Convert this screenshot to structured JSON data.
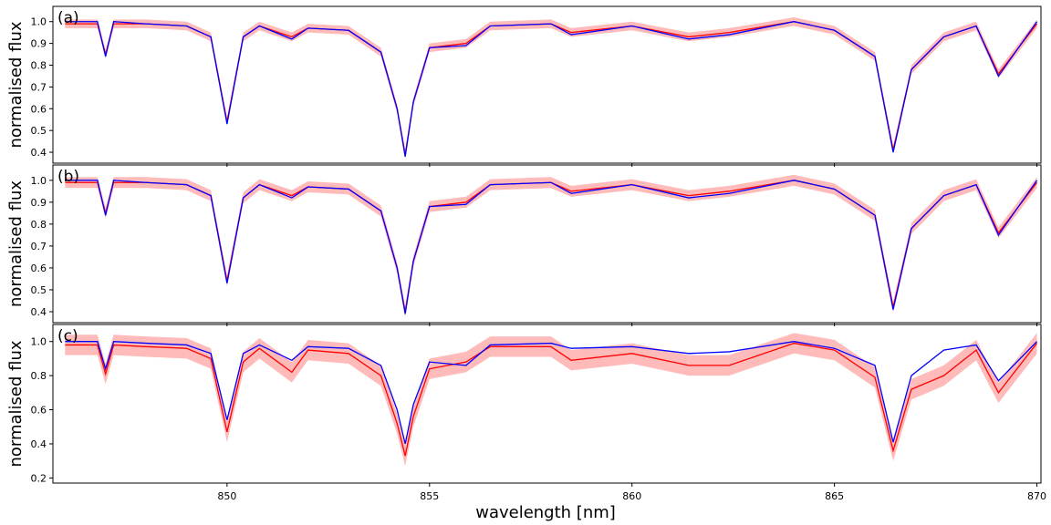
{
  "figure": {
    "xlabel": "wavelength [nm]",
    "colors": {
      "model_line": "#ff0000",
      "model_band": "#ffb3b3",
      "observed_line": "#0000ff",
      "frame": "#000000"
    }
  },
  "chart_data": [
    {
      "type": "line",
      "panel_label": "(a)",
      "ylabel": "normalised flux",
      "xlim": [
        845.7,
        870.1
      ],
      "ylim": [
        0.35,
        1.07
      ],
      "x_ticks": [
        850,
        855,
        860,
        865,
        870
      ],
      "x_tick_labels": [],
      "y_ticks": [
        0.4,
        0.5,
        0.6,
        0.7,
        0.8,
        0.9,
        1.0
      ],
      "y_tick_labels": [
        "0.4",
        "0.5",
        "0.6",
        "0.7",
        "0.8",
        "0.9",
        "1.0"
      ],
      "band_half_width": 0.02,
      "x": [
        846.0,
        846.8,
        847.0,
        847.2,
        848.0,
        849.0,
        849.6,
        850.0,
        850.4,
        850.8,
        851.6,
        852.0,
        853.0,
        853.8,
        854.2,
        854.4,
        854.6,
        855.0,
        855.9,
        856.5,
        858.0,
        858.5,
        860.0,
        861.4,
        862.4,
        864.0,
        865.0,
        866.0,
        866.45,
        866.9,
        867.7,
        868.5,
        869.05,
        870.0
      ],
      "series": [
        {
          "name": "",
          "role": "model",
          "values": [
            0.99,
            0.99,
            0.85,
            0.99,
            0.99,
            0.98,
            0.93,
            0.54,
            0.93,
            0.98,
            0.93,
            0.97,
            0.96,
            0.86,
            0.6,
            0.39,
            0.63,
            0.88,
            0.9,
            0.98,
            0.99,
            0.95,
            0.98,
            0.93,
            0.95,
            1.0,
            0.96,
            0.84,
            0.41,
            0.78,
            0.93,
            0.98,
            0.76,
            0.99
          ]
        },
        {
          "name": "",
          "role": "observed",
          "values": [
            1.0,
            1.0,
            0.84,
            1.0,
            0.99,
            0.98,
            0.93,
            0.53,
            0.93,
            0.98,
            0.92,
            0.97,
            0.96,
            0.86,
            0.6,
            0.38,
            0.63,
            0.88,
            0.89,
            0.98,
            0.99,
            0.94,
            0.98,
            0.92,
            0.94,
            1.0,
            0.96,
            0.84,
            0.4,
            0.78,
            0.93,
            0.98,
            0.75,
            1.0
          ]
        }
      ]
    },
    {
      "type": "line",
      "panel_label": "(b)",
      "ylabel": "normalised flux",
      "xlim": [
        845.7,
        870.1
      ],
      "ylim": [
        0.35,
        1.07
      ],
      "x_ticks": [
        850,
        855,
        860,
        865,
        870
      ],
      "x_tick_labels": [],
      "y_ticks": [
        0.4,
        0.5,
        0.6,
        0.7,
        0.8,
        0.9,
        1.0
      ],
      "y_tick_labels": [
        "0.4",
        "0.5",
        "0.6",
        "0.7",
        "0.8",
        "0.9",
        "1.0"
      ],
      "band_half_width": 0.025,
      "x": [
        846.0,
        846.8,
        847.0,
        847.2,
        848.0,
        849.0,
        849.6,
        850.0,
        850.4,
        850.8,
        851.6,
        852.0,
        853.0,
        853.8,
        854.2,
        854.4,
        854.6,
        855.0,
        855.9,
        856.5,
        858.0,
        858.5,
        860.0,
        861.4,
        862.4,
        864.0,
        865.0,
        866.0,
        866.45,
        866.9,
        867.7,
        868.5,
        869.05,
        870.0
      ],
      "series": [
        {
          "name": "",
          "role": "model",
          "values": [
            0.99,
            0.99,
            0.85,
            0.99,
            0.99,
            0.98,
            0.93,
            0.54,
            0.92,
            0.98,
            0.93,
            0.97,
            0.96,
            0.86,
            0.6,
            0.4,
            0.63,
            0.88,
            0.9,
            0.98,
            0.99,
            0.95,
            0.98,
            0.93,
            0.95,
            1.0,
            0.96,
            0.84,
            0.42,
            0.78,
            0.93,
            0.98,
            0.76,
            0.99
          ]
        },
        {
          "name": "",
          "role": "observed",
          "values": [
            1.0,
            1.0,
            0.84,
            1.0,
            0.99,
            0.98,
            0.93,
            0.53,
            0.92,
            0.98,
            0.92,
            0.97,
            0.96,
            0.86,
            0.6,
            0.39,
            0.63,
            0.88,
            0.89,
            0.98,
            0.99,
            0.94,
            0.98,
            0.92,
            0.94,
            1.0,
            0.96,
            0.84,
            0.41,
            0.78,
            0.93,
            0.98,
            0.75,
            1.0
          ]
        }
      ]
    },
    {
      "type": "line",
      "panel_label": "(c)",
      "ylabel": "normalised flux",
      "xlim": [
        845.7,
        870.1
      ],
      "ylim": [
        0.17,
        1.1
      ],
      "x_ticks": [
        850,
        855,
        860,
        865,
        870
      ],
      "x_tick_labels": [
        "850",
        "855",
        "860",
        "865",
        "870"
      ],
      "y_ticks": [
        0.2,
        0.4,
        0.6,
        0.8,
        1.0
      ],
      "y_tick_labels": [
        "0.2",
        "0.4",
        "0.6",
        "0.8",
        "1.0"
      ],
      "band_half_width": 0.06,
      "x": [
        846.0,
        846.8,
        847.0,
        847.2,
        848.0,
        849.0,
        849.6,
        850.0,
        850.4,
        850.8,
        851.6,
        852.0,
        853.0,
        853.8,
        854.2,
        854.4,
        854.6,
        855.0,
        855.9,
        856.5,
        858.0,
        858.5,
        860.0,
        861.4,
        862.4,
        864.0,
        865.0,
        866.0,
        866.45,
        866.9,
        867.7,
        868.5,
        869.05,
        870.0
      ],
      "series": [
        {
          "name": "",
          "role": "model",
          "values": [
            0.98,
            0.98,
            0.81,
            0.98,
            0.97,
            0.96,
            0.9,
            0.47,
            0.88,
            0.96,
            0.82,
            0.95,
            0.93,
            0.8,
            0.52,
            0.33,
            0.56,
            0.84,
            0.88,
            0.97,
            0.97,
            0.89,
            0.93,
            0.86,
            0.86,
            0.99,
            0.95,
            0.79,
            0.36,
            0.72,
            0.8,
            0.95,
            0.7,
            0.99
          ]
        },
        {
          "name": "",
          "role": "observed",
          "values": [
            1.0,
            1.0,
            0.84,
            1.0,
            0.99,
            0.98,
            0.93,
            0.54,
            0.93,
            0.98,
            0.89,
            0.97,
            0.96,
            0.86,
            0.6,
            0.4,
            0.63,
            0.88,
            0.86,
            0.98,
            0.99,
            0.96,
            0.97,
            0.93,
            0.94,
            1.0,
            0.96,
            0.86,
            0.41,
            0.8,
            0.95,
            0.98,
            0.77,
            1.0
          ]
        }
      ]
    }
  ]
}
